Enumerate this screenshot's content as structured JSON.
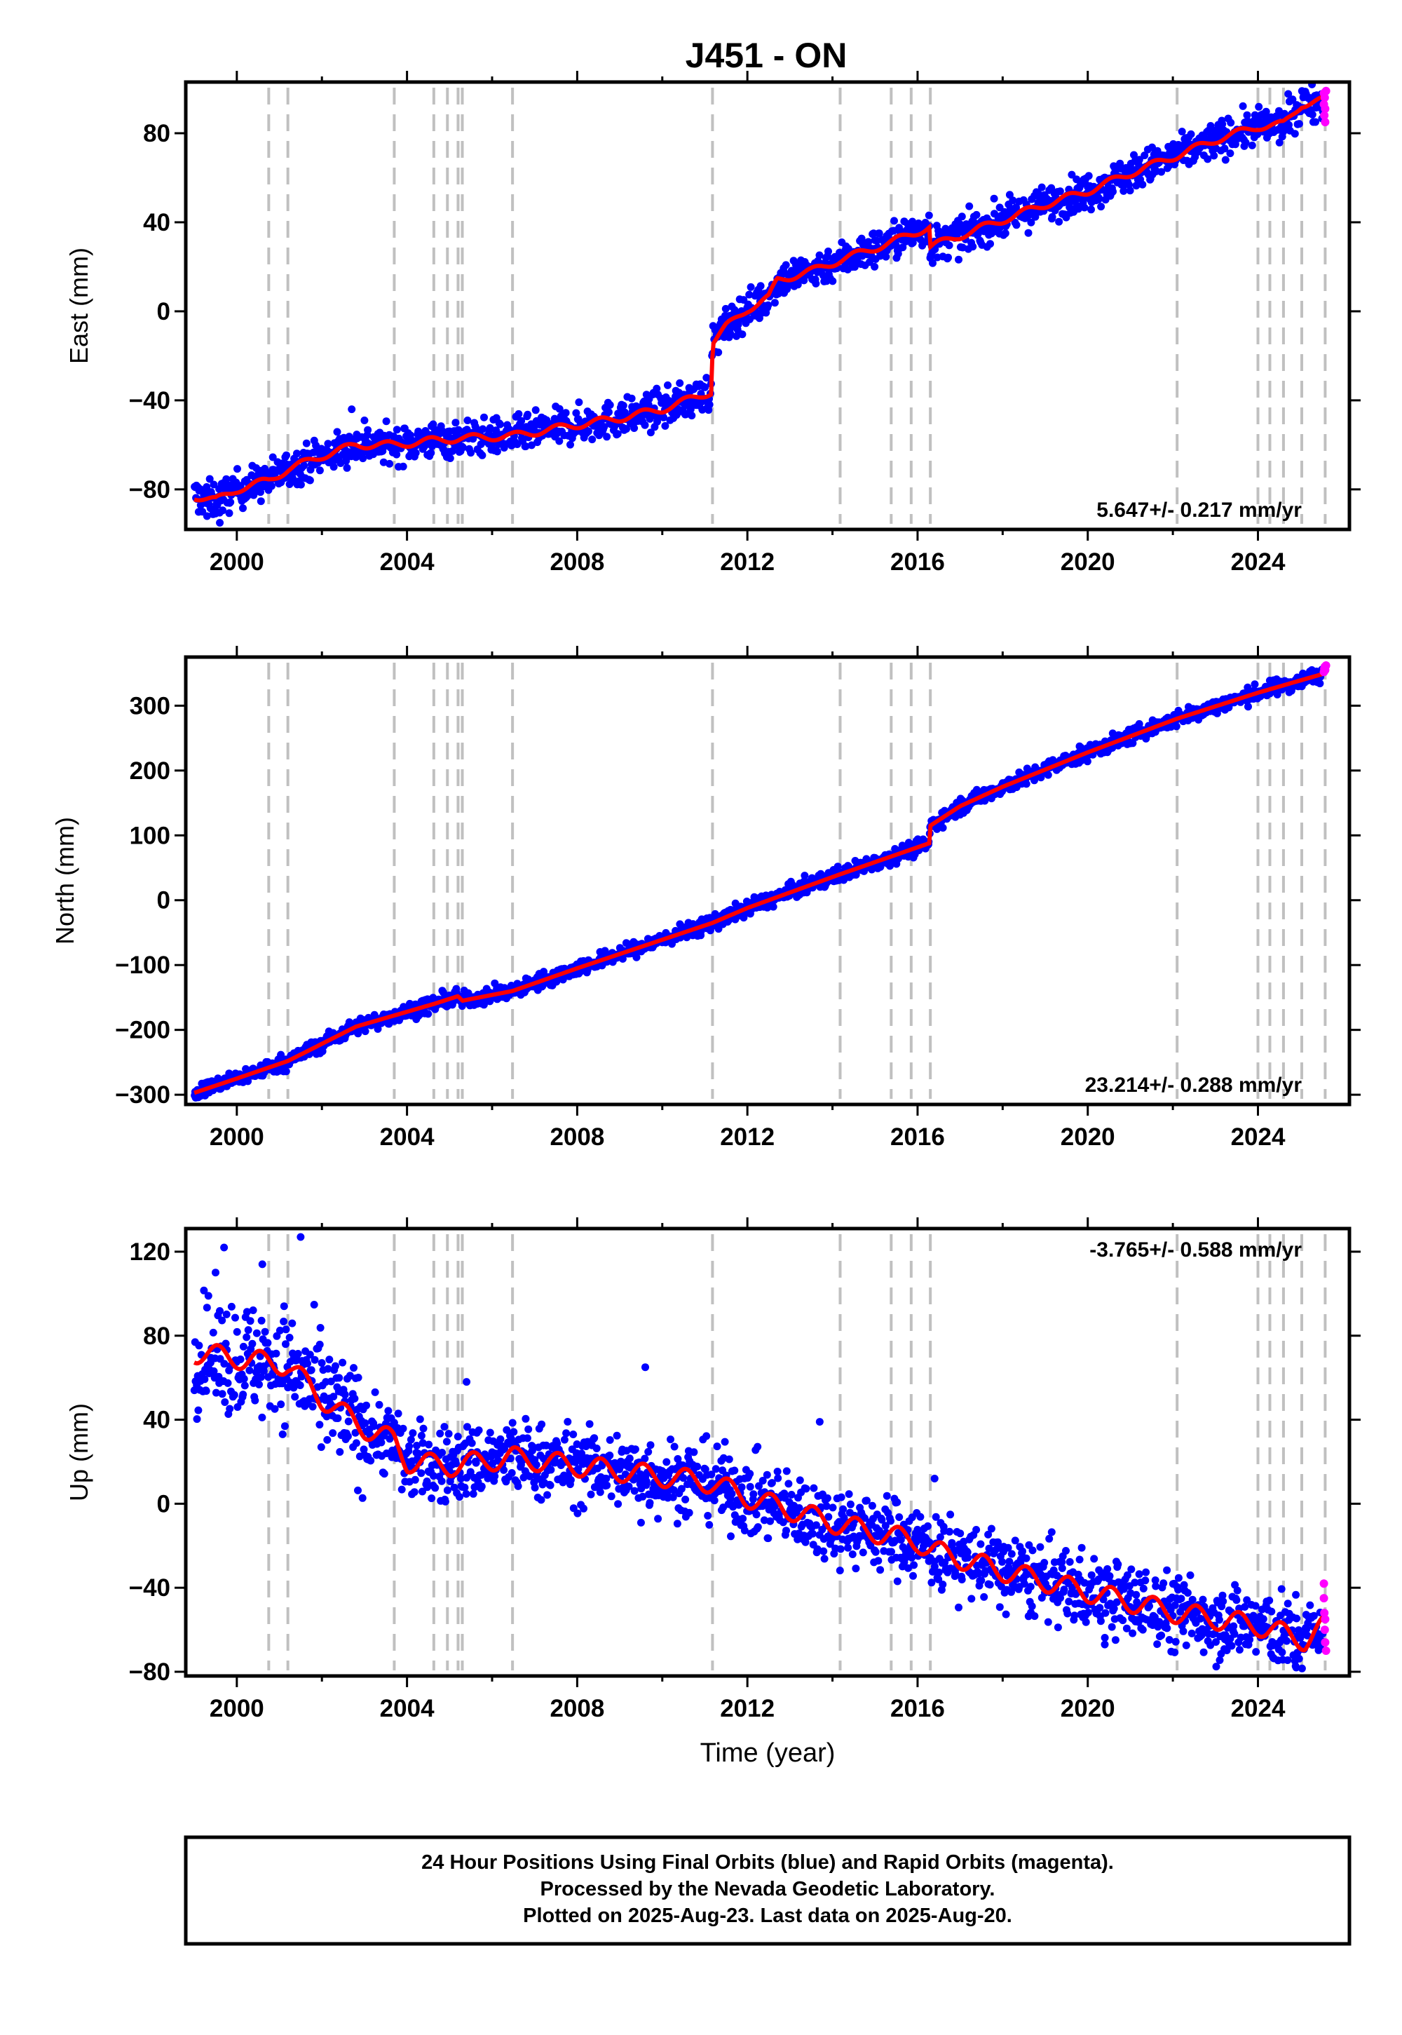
{
  "title": "J451 - ON",
  "footer": {
    "lines": [
      "24 Hour Positions Using Final Orbits (blue) and Rapid Orbits (magenta).",
      "Processed by the Nevada Geodetic Laboratory.",
      "Plotted on 2025-Aug-23. Last data on 2025-Aug-20."
    ]
  },
  "colors": {
    "final": "#0000ff",
    "rapid": "#ff00ff",
    "model": "#ff0000",
    "event": "#c0c0c0"
  },
  "chart_data": [
    {
      "type": "scatter",
      "ylabel": "East (mm)",
      "xlabel": "",
      "xlim": [
        1998.8,
        2026.15
      ],
      "ylim": [
        -98,
        103
      ],
      "xticks": [
        "2000",
        "2004",
        "2008",
        "2012",
        "2016",
        "2020",
        "2024"
      ],
      "yticks": [
        "-80",
        "-40",
        "0",
        "40",
        "80"
      ],
      "rate": "5.647+/- 0.217 mm/yr",
      "rate_position": "bottom-right",
      "event_lines": [
        2000.75,
        2001.2,
        2003.7,
        2004.63,
        2004.95,
        2005.2,
        2005.3,
        2006.48,
        2011.18,
        2014.18,
        2015.38,
        2015.85,
        2016.3,
        2022.1,
        2024.0,
        2024.28,
        2024.6,
        2025.03,
        2025.58
      ],
      "model": [
        [
          1999.0,
          -83
        ],
        [
          1999.5,
          -85
        ],
        [
          2000.0,
          -80
        ],
        [
          2000.75,
          -76
        ],
        [
          2001.2,
          -71
        ],
        [
          2002.0,
          -65
        ],
        [
          2002.8,
          -60
        ],
        [
          2003.7,
          -60
        ],
        [
          2004.63,
          -58
        ],
        [
          2005.3,
          -57
        ],
        [
          2006.48,
          -56
        ],
        [
          2008.0,
          -51
        ],
        [
          2009.0,
          -48
        ],
        [
          2010.0,
          -44
        ],
        [
          2011.16,
          -36
        ],
        [
          2011.18,
          -14
        ],
        [
          2011.5,
          -7
        ],
        [
          2012.0,
          1
        ],
        [
          2012.5,
          6
        ],
        [
          2012.7,
          14
        ],
        [
          2013.5,
          18
        ],
        [
          2014.18,
          23
        ],
        [
          2015.38,
          31
        ],
        [
          2016.28,
          38
        ],
        [
          2016.3,
          29
        ],
        [
          2017.0,
          34
        ],
        [
          2018.0,
          41
        ],
        [
          2019.0,
          48
        ],
        [
          2020.0,
          54
        ],
        [
          2021.0,
          62
        ],
        [
          2022.1,
          70
        ],
        [
          2023.0,
          77
        ],
        [
          2024.0,
          83
        ],
        [
          2024.6,
          84
        ],
        [
          2025.03,
          93
        ],
        [
          2025.58,
          95
        ]
      ],
      "series": [
        {
          "name": "Final Orbits (blue)"
        },
        {
          "name": "Rapid Orbits (magenta)"
        }
      ],
      "rapid": [
        [
          2025.55,
          98
        ],
        [
          2025.55,
          93
        ],
        [
          2025.56,
          88
        ],
        [
          2025.57,
          96
        ],
        [
          2025.58,
          85
        ],
        [
          2025.58,
          91
        ],
        [
          2025.6,
          99
        ]
      ],
      "spread": 4,
      "outliers": [
        [
          2002.7,
          -44
        ],
        [
          1999.3,
          -92
        ],
        [
          1999.6,
          -95
        ],
        [
          2003.0,
          -49
        ]
      ]
    },
    {
      "type": "scatter",
      "ylabel": "North (mm)",
      "xlabel": "",
      "xlim": [
        1998.8,
        2026.15
      ],
      "ylim": [
        -315,
        375
      ],
      "xticks": [
        "2000",
        "2004",
        "2008",
        "2012",
        "2016",
        "2020",
        "2024"
      ],
      "yticks": [
        "-300",
        "-200",
        "-100",
        "0",
        "100",
        "200",
        "300"
      ],
      "rate": "23.214+/- 0.288 mm/yr",
      "rate_position": "bottom-right",
      "event_lines": [
        2000.75,
        2001.2,
        2003.7,
        2004.63,
        2004.95,
        2005.2,
        2005.3,
        2006.48,
        2011.18,
        2014.18,
        2015.38,
        2015.85,
        2016.3,
        2022.1,
        2024.0,
        2024.28,
        2024.6,
        2025.03,
        2025.58
      ],
      "model": [
        [
          1999.0,
          -297
        ],
        [
          2000.0,
          -275
        ],
        [
          2001.2,
          -248
        ],
        [
          2002.8,
          -195
        ],
        [
          2004.63,
          -160
        ],
        [
          2005.2,
          -148
        ],
        [
          2005.3,
          -155
        ],
        [
          2006.48,
          -140
        ],
        [
          2008.0,
          -105
        ],
        [
          2011.18,
          -35
        ],
        [
          2012.0,
          -12
        ],
        [
          2014.18,
          40
        ],
        [
          2016.28,
          88
        ],
        [
          2016.3,
          115
        ],
        [
          2017.0,
          145
        ],
        [
          2018.0,
          175
        ],
        [
          2020.0,
          228
        ],
        [
          2022.1,
          280
        ],
        [
          2024.0,
          320
        ],
        [
          2025.58,
          350
        ]
      ],
      "series": [
        {
          "name": "Final Orbits (blue)"
        },
        {
          "name": "Rapid Orbits (magenta)"
        }
      ],
      "rapid": [
        [
          2025.55,
          352
        ],
        [
          2025.56,
          357
        ],
        [
          2025.57,
          360
        ],
        [
          2025.58,
          355
        ],
        [
          2025.6,
          362
        ]
      ],
      "spread": 6,
      "outliers": []
    },
    {
      "type": "scatter",
      "ylabel": "Up (mm)",
      "xlabel": "Time (year)",
      "xlim": [
        1998.8,
        2026.15
      ],
      "ylim": [
        -82,
        131
      ],
      "xticks": [
        "2000",
        "2004",
        "2008",
        "2012",
        "2016",
        "2020",
        "2024"
      ],
      "yticks": [
        "-80",
        "-40",
        "0",
        "40",
        "80",
        "120"
      ],
      "rate": "-3.765+/- 0.588 mm/yr",
      "rate_position": "top-right",
      "event_lines": [
        2000.75,
        2001.2,
        2003.7,
        2004.63,
        2004.95,
        2005.2,
        2005.3,
        2006.48,
        2011.18,
        2014.18,
        2015.38,
        2015.85,
        2016.3,
        2022.1,
        2024.0,
        2024.28,
        2024.6,
        2025.03,
        2025.58
      ],
      "model": [
        [
          1999.0,
          72
        ],
        [
          2001.2,
          66
        ],
        [
          2002.0,
          50
        ],
        [
          2003.0,
          36
        ],
        [
          2003.7,
          30
        ],
        [
          2004.0,
          20
        ],
        [
          2005.0,
          18
        ],
        [
          2006.48,
          22
        ],
        [
          2008.0,
          18
        ],
        [
          2011.18,
          10
        ],
        [
          2012.0,
          3
        ],
        [
          2014.18,
          -10
        ],
        [
          2016.0,
          -18
        ],
        [
          2016.3,
          -22
        ],
        [
          2018.0,
          -32
        ],
        [
          2020.0,
          -42
        ],
        [
          2022.1,
          -52
        ],
        [
          2024.0,
          -58
        ],
        [
          2025.1,
          -65
        ],
        [
          2025.58,
          -58
        ]
      ],
      "series": [
        {
          "name": "Final Orbits (blue)"
        },
        {
          "name": "Rapid Orbits (magenta)"
        }
      ],
      "rapid": [
        [
          2025.55,
          -38
        ],
        [
          2025.55,
          -45
        ],
        [
          2025.56,
          -52
        ],
        [
          2025.57,
          -60
        ],
        [
          2025.58,
          -66
        ],
        [
          2025.58,
          -55
        ],
        [
          2025.6,
          -70
        ]
      ],
      "spread": 9,
      "outliers": [
        [
          1999.7,
          122
        ],
        [
          2001.5,
          127
        ],
        [
          2000.6,
          114
        ],
        [
          2009.6,
          65
        ],
        [
          2013.7,
          39
        ],
        [
          2016.4,
          12
        ],
        [
          2009.5,
          -9
        ],
        [
          2020.4,
          -67
        ],
        [
          2024.9,
          -78
        ],
        [
          2005.4,
          58
        ]
      ]
    }
  ]
}
